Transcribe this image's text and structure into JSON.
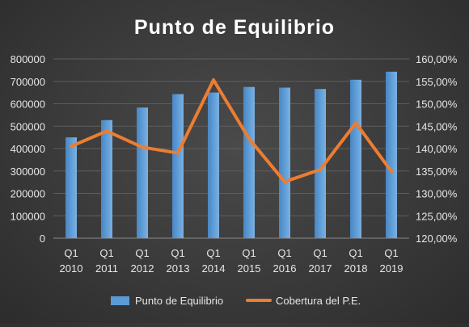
{
  "chart_data": {
    "type": "bar",
    "title": "Punto de Equilibrio",
    "categories": [
      "Q1 2010",
      "Q1 2011",
      "Q1 2012",
      "Q1 2013",
      "Q1 2014",
      "Q1 2015",
      "Q1 2016",
      "Q1 2017",
      "Q1 2018",
      "Q1 2019"
    ],
    "category_lines": [
      [
        "Q1",
        "2010"
      ],
      [
        "Q1",
        "2011"
      ],
      [
        "Q1",
        "2012"
      ],
      [
        "Q1",
        "2013"
      ],
      [
        "Q1",
        "2014"
      ],
      [
        "Q1",
        "2015"
      ],
      [
        "Q1",
        "2016"
      ],
      [
        "Q1",
        "2017"
      ],
      [
        "Q1",
        "2018"
      ],
      [
        "Q1",
        "2019"
      ]
    ],
    "series": [
      {
        "name": "Punto de Equilibrio",
        "type": "bar",
        "axis": "left",
        "color": "#5b9bd5",
        "values": [
          450000,
          527000,
          583000,
          643000,
          650000,
          675000,
          672000,
          666000,
          707000,
          743000
        ]
      },
      {
        "name": "Cobertura del P.E.",
        "type": "line",
        "axis": "right",
        "color": "#ed7d31",
        "values": [
          140.5,
          143.9,
          140.3,
          139.0,
          155.3,
          142.2,
          132.6,
          135.3,
          145.7,
          134.9
        ]
      }
    ],
    "ylim_left": [
      0,
      800000
    ],
    "yticks_left": [
      "0",
      "100000",
      "200000",
      "300000",
      "400000",
      "500000",
      "600000",
      "700000",
      "800000"
    ],
    "ylim_right": [
      120,
      160
    ],
    "yticks_right": [
      "120,00%",
      "125,00%",
      "130,00%",
      "135,00%",
      "140,00%",
      "145,00%",
      "150,00%",
      "155,00%",
      "160,00%"
    ],
    "grid": true,
    "legend_position": "bottom"
  }
}
